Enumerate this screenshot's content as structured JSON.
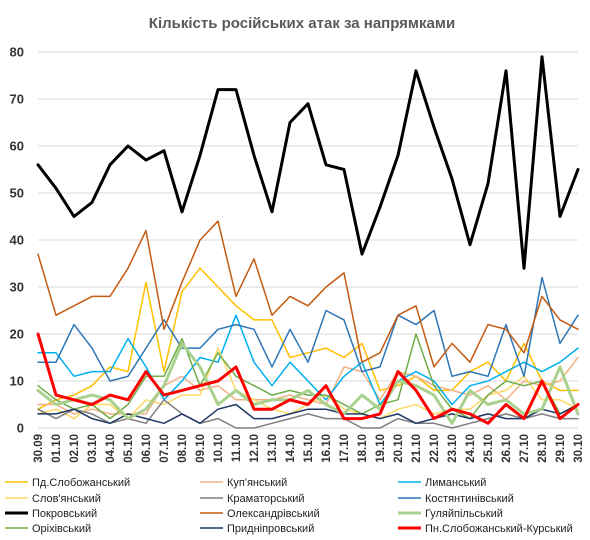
{
  "chart_data": {
    "type": "line",
    "title": "Кількість російських атак за напрямками",
    "xlabel": "",
    "ylabel": "",
    "ylim": [
      0,
      80
    ],
    "yticks": [
      0,
      10,
      20,
      30,
      40,
      50,
      60,
      70,
      80
    ],
    "grid": "horizontal",
    "legend_placement": "bottom",
    "categories": [
      "30.09",
      "01.10",
      "02.10",
      "03.10",
      "04.10",
      "05.10",
      "06.10",
      "07.10",
      "08.10",
      "09.10",
      "10.10",
      "11.10",
      "12.10",
      "13.10",
      "14.10",
      "15.10",
      "16.10",
      "17.10",
      "18.10",
      "19.10",
      "20.10",
      "21.10",
      "22.10",
      "23.10",
      "24.10",
      "25.10",
      "26.10",
      "27.10",
      "28.10",
      "29.10",
      "30.10"
    ],
    "series": [
      {
        "name": "Пд.Слобожанський",
        "color": "#FFC000",
        "width": 1.5,
        "values": [
          4,
          6,
          7,
          9,
          13,
          12,
          31,
          12,
          29,
          34,
          30,
          26,
          23,
          23,
          15,
          16,
          17,
          15,
          18,
          8,
          9,
          11,
          8,
          8,
          12,
          14,
          10,
          18,
          10,
          8,
          8
        ]
      },
      {
        "name": "Куп'янський",
        "color": "#F4B183",
        "width": 1.5,
        "values": [
          5,
          5,
          3,
          4,
          3,
          3,
          3,
          9,
          11,
          8,
          9,
          6,
          6,
          6,
          7,
          6,
          5,
          13,
          12,
          6,
          12,
          11,
          9,
          8,
          7,
          9,
          6,
          10,
          9,
          10,
          15
        ]
      },
      {
        "name": "Лиманський",
        "color": "#00B0F0",
        "width": 1.5,
        "values": [
          16,
          16,
          11,
          12,
          12,
          19,
          13,
          6,
          10,
          15,
          14,
          24,
          14,
          9,
          14,
          10,
          6,
          11,
          14,
          5,
          10,
          12,
          10,
          5,
          9,
          10,
          12,
          14,
          12,
          14,
          17
        ]
      },
      {
        "name": "Слов'янський",
        "color": "#FFD966",
        "width": 1.5,
        "values": [
          3,
          4,
          2,
          5,
          5,
          2,
          6,
          5,
          7,
          7,
          17,
          8,
          6,
          4,
          3,
          5,
          7,
          4,
          3,
          2,
          4,
          5,
          3,
          4,
          4,
          7,
          8,
          11,
          6,
          6,
          4
        ]
      },
      {
        "name": "Краматорський",
        "color": "#7F7F7F",
        "width": 1.5,
        "values": [
          4,
          2,
          4,
          3,
          1,
          2,
          1,
          6,
          3,
          1,
          2,
          0,
          0,
          1,
          2,
          3,
          2,
          2,
          0,
          0,
          2,
          1,
          1,
          0,
          1,
          2,
          3,
          2,
          3,
          2,
          2
        ]
      },
      {
        "name": "Костянтинівський",
        "color": "#2E75B6",
        "width": 1.5,
        "values": [
          14,
          14,
          22,
          17,
          10,
          11,
          17,
          23,
          17,
          17,
          21,
          22,
          21,
          13,
          21,
          14,
          25,
          23,
          12,
          13,
          24,
          22,
          25,
          11,
          12,
          11,
          22,
          11,
          32,
          18,
          24
        ]
      },
      {
        "name": "Покровський",
        "color": "#000000",
        "width": 3,
        "values": [
          56,
          51,
          45,
          48,
          56,
          60,
          57,
          59,
          46,
          58,
          72,
          72,
          58,
          46,
          65,
          69,
          56,
          55,
          37,
          47,
          58,
          76,
          64,
          53,
          39,
          52,
          76,
          34,
          79,
          45,
          55
        ]
      },
      {
        "name": "Олександрівський",
        "color": "#C55A11",
        "width": 1.5,
        "values": [
          37,
          24,
          26,
          28,
          28,
          34,
          42,
          21,
          31,
          40,
          44,
          28,
          36,
          24,
          28,
          26,
          30,
          33,
          14,
          16,
          24,
          26,
          13,
          18,
          14,
          22,
          21,
          16,
          28,
          23,
          21
        ]
      },
      {
        "name": "Гуляйпільський",
        "color": "#A9D18E",
        "width": 3,
        "values": [
          8,
          5,
          6,
          7,
          6,
          2,
          4,
          9,
          18,
          13,
          5,
          8,
          5,
          6,
          6,
          8,
          5,
          3,
          7,
          4,
          10,
          9,
          7,
          1,
          8,
          5,
          6,
          3,
          4,
          13,
          3
        ]
      },
      {
        "name": "Оріхівський",
        "color": "#70AD47",
        "width": 1.5,
        "values": [
          9,
          6,
          4,
          5,
          2,
          5,
          11,
          11,
          19,
          9,
          16,
          11,
          9,
          7,
          8,
          7,
          7,
          5,
          3,
          5,
          6,
          20,
          9,
          4,
          2,
          7,
          10,
          9,
          10,
          3,
          5
        ]
      },
      {
        "name": "Придніпровський",
        "color": "#1F3864",
        "width": 1.5,
        "values": [
          3,
          3,
          4,
          2,
          1,
          3,
          2,
          1,
          3,
          1,
          4,
          5,
          2,
          2,
          3,
          4,
          4,
          3,
          3,
          2,
          3,
          1,
          2,
          3,
          2,
          3,
          2,
          2,
          4,
          3,
          5
        ]
      },
      {
        "name": "Пн.Слобожанський-Курський",
        "color": "#FF0000",
        "width": 3,
        "values": [
          20,
          7,
          6,
          5,
          7,
          6,
          12,
          7,
          8,
          9,
          10,
          13,
          4,
          4,
          6,
          5,
          9,
          2,
          2,
          3,
          12,
          8,
          2,
          4,
          3,
          1,
          5,
          2,
          10,
          2,
          5
        ]
      }
    ]
  }
}
